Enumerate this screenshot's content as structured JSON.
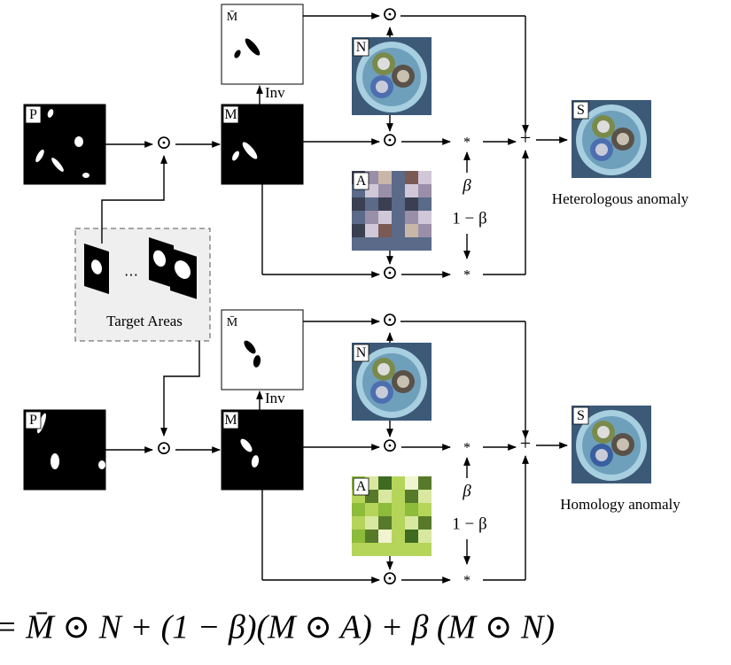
{
  "panels": [
    {
      "labels": {
        "p": "P",
        "m_bar": "M̄",
        "m": "M",
        "n": "N",
        "a": "A",
        "s": "S"
      },
      "inv": "Inv",
      "beta": "β",
      "one_minus_beta": "1 − β",
      "caption": "Heterologous anomaly"
    },
    {
      "labels": {
        "p": "P",
        "m_bar": "M̄",
        "m": "M",
        "n": "N",
        "a": "A",
        "s": "S"
      },
      "inv": "Inv",
      "beta": "β",
      "one_minus_beta": "1 − β",
      "caption": "Homology anomaly"
    }
  ],
  "symbols": {
    "odot": "⊙",
    "star": "*",
    "plus": "+"
  },
  "target_areas": {
    "label": "Target Areas",
    "ellipsis": "⋯"
  },
  "formula": "= M̄ ⊙ N + (1 − β)(M ⊙ A) + β (M ⊙ N)"
}
